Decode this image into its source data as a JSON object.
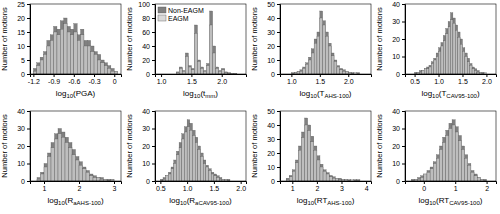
{
  "chart_data": [
    {
      "type": "histogram",
      "xlabel": [
        "log",
        "10",
        "(PGA)"
      ],
      "ylabel": "Number of motions",
      "bins": [
        -1.2,
        -1.15,
        -1.1,
        -1.05,
        -1,
        -0.95,
        -0.9,
        -0.85,
        -0.8,
        -0.75,
        -0.7,
        -0.65,
        -0.6,
        -0.55,
        -0.5,
        -0.45,
        -0.4,
        -0.35,
        -0.3,
        -0.25,
        -0.2,
        -0.15,
        -0.1,
        -0.05,
        0,
        0.05
      ],
      "series": [
        {
          "color": "#808080",
          "values": [
            2,
            4,
            6,
            8,
            12,
            14,
            17,
            16,
            19,
            20,
            17,
            16,
            18,
            14,
            16,
            12,
            12,
            10,
            8,
            7,
            5,
            4,
            3,
            2,
            1
          ]
        },
        {
          "color": "#d9d9d9",
          "values": [
            1,
            3,
            5,
            7,
            10,
            12,
            15,
            14,
            16,
            18,
            15,
            14,
            15,
            12,
            14,
            10,
            10,
            8,
            7,
            5,
            4,
            3,
            2,
            1,
            1
          ]
        }
      ],
      "xlim": [
        -1.25,
        0.1
      ],
      "xticks": [
        -1.2,
        -0.9,
        -0.6,
        -0.3,
        0
      ],
      "ylim": [
        0,
        25
      ],
      "yticks": [
        0,
        5,
        10,
        15,
        20,
        25
      ]
    },
    {
      "type": "histogram",
      "xlabel": [
        "log",
        "10",
        "(t",
        "mm",
        ")"
      ],
      "ylabel": "Number of motions",
      "bins": [
        1.2,
        1.25,
        1.3,
        1.35,
        1.4,
        1.45,
        1.5,
        1.55,
        1.6,
        1.65,
        1.7,
        1.75,
        1.8,
        1.85,
        1.9,
        1.95,
        2,
        2.05,
        2.1,
        2.15,
        2.2,
        2.25,
        2.3
      ],
      "series": [
        {
          "name": "Non-EAGM",
          "color": "#808080",
          "values": [
            0,
            3,
            10,
            5,
            30,
            12,
            8,
            70,
            20,
            10,
            5,
            15,
            90,
            40,
            10,
            5,
            8,
            3,
            2,
            1,
            1,
            0
          ]
        },
        {
          "name": "EAGM",
          "color": "#d9d9d9",
          "values": [
            0,
            2,
            8,
            4,
            25,
            10,
            6,
            58,
            18,
            8,
            4,
            12,
            70,
            30,
            8,
            4,
            6,
            2,
            1,
            1,
            0,
            0
          ]
        }
      ],
      "legend": "upper left",
      "xlim": [
        0.9,
        2.4
      ],
      "xticks": [
        {
          "value": 1,
          "label": "1.0"
        },
        1.5,
        {
          "value": 2,
          "label": "2.0"
        }
      ],
      "ylim": [
        0,
        100
      ],
      "yticks": [
        0,
        20,
        40,
        60,
        80,
        100
      ]
    },
    {
      "type": "histogram",
      "xlabel": [
        "log",
        "10",
        "(T",
        "AHS-100",
        ")"
      ],
      "ylabel": "Number of motions",
      "bins": [
        1,
        1.05,
        1.1,
        1.15,
        1.2,
        1.25,
        1.3,
        1.35,
        1.4,
        1.45,
        1.5,
        1.55,
        1.6,
        1.65,
        1.7,
        1.75,
        1.8,
        1.85,
        1.9,
        1.95,
        2,
        2.05,
        2.1,
        2.15,
        2.2
      ],
      "series": [
        {
          "color": "#808080",
          "values": [
            1,
            1,
            2,
            3,
            5,
            8,
            12,
            18,
            25,
            30,
            45,
            38,
            30,
            22,
            15,
            10,
            6,
            4,
            3,
            2,
            1,
            1,
            0,
            1
          ]
        },
        {
          "color": "#d9d9d9",
          "values": [
            0,
            1,
            2,
            2,
            4,
            7,
            10,
            15,
            22,
            27,
            40,
            35,
            27,
            20,
            13,
            9,
            5,
            3,
            2,
            2,
            1,
            0,
            1,
            0
          ]
        }
      ],
      "xlim": [
        0.8,
        2.4
      ],
      "xticks": [
        {
          "value": 1,
          "label": "1.0"
        },
        1.5,
        {
          "value": 2,
          "label": "2.0"
        }
      ],
      "ylim": [
        0,
        50
      ],
      "yticks": [
        0,
        10,
        20,
        30,
        40,
        50
      ]
    },
    {
      "type": "histogram",
      "xlabel": [
        "log",
        "10",
        "(T",
        "CAV95-100",
        ")"
      ],
      "ylabel": "Number of motions",
      "bins": [
        0.5,
        0.55,
        0.6,
        0.65,
        0.7,
        0.75,
        0.8,
        0.85,
        0.9,
        0.95,
        1,
        1.05,
        1.1,
        1.15,
        1.2,
        1.25,
        1.3,
        1.35,
        1.4,
        1.45,
        1.5,
        1.55,
        1.6,
        1.65,
        1.7,
        1.75,
        1.8,
        1.85,
        1.9,
        1.95,
        2
      ],
      "series": [
        {
          "color": "#808080",
          "values": [
            1,
            1,
            2,
            2,
            3,
            4,
            5,
            7,
            9,
            12,
            15,
            18,
            22,
            26,
            30,
            35,
            32,
            28,
            24,
            20,
            15,
            12,
            9,
            6,
            4,
            3,
            2,
            1,
            1,
            0
          ]
        },
        {
          "color": "#d9d9d9",
          "values": [
            0,
            1,
            1,
            2,
            3,
            3,
            4,
            6,
            8,
            10,
            13,
            16,
            19,
            23,
            27,
            31,
            29,
            25,
            21,
            17,
            13,
            10,
            7,
            5,
            3,
            2,
            1,
            1,
            0,
            1
          ]
        }
      ],
      "xlim": [
        0.3,
        2.2
      ],
      "xticks": [
        0.5,
        {
          "value": 1,
          "label": "1.0"
        },
        1.5,
        {
          "value": 2,
          "label": "2.0"
        }
      ],
      "ylim": [
        0,
        40
      ],
      "yticks": [
        0,
        10,
        20,
        30,
        40
      ]
    },
    {
      "type": "histogram",
      "xlabel": [
        "log",
        "10",
        "(R",
        "aAHS-100",
        ")"
      ],
      "ylabel": "Number of motions",
      "bins": [
        0.8,
        0.9,
        1,
        1.1,
        1.2,
        1.3,
        1.4,
        1.5,
        1.6,
        1.7,
        1.8,
        1.9,
        2,
        2.1,
        2.2,
        2.3,
        2.4,
        2.5,
        2.6,
        2.7,
        2.8,
        2.9,
        3
      ],
      "series": [
        {
          "color": "#808080",
          "values": [
            2,
            5,
            10,
            16,
            22,
            27,
            30,
            28,
            25,
            22,
            18,
            14,
            11,
            8,
            6,
            4,
            3,
            2,
            2,
            1,
            1,
            1
          ]
        },
        {
          "color": "#d9d9d9",
          "values": [
            1,
            4,
            8,
            14,
            19,
            24,
            27,
            25,
            22,
            19,
            15,
            12,
            9,
            7,
            5,
            3,
            2,
            2,
            1,
            1,
            0,
            1
          ]
        }
      ],
      "xlim": [
        0.6,
        3.2
      ],
      "xticks": [
        1,
        2,
        3
      ],
      "ylim": [
        0,
        40
      ],
      "yticks": [
        0,
        10,
        20,
        30,
        40
      ]
    },
    {
      "type": "histogram",
      "xlabel": [
        "log",
        "10",
        "(R",
        "aCAV95-100",
        ")"
      ],
      "ylabel": "Number of motions",
      "bins": [
        0.5,
        0.55,
        0.6,
        0.65,
        0.7,
        0.75,
        0.8,
        0.85,
        0.9,
        0.95,
        1,
        1.05,
        1.1,
        1.15,
        1.2,
        1.25,
        1.3,
        1.35,
        1.4,
        1.45,
        1.5,
        1.55,
        1.6,
        1.65,
        1.7,
        1.75,
        1.8
      ],
      "series": [
        {
          "color": "#808080",
          "values": [
            1,
            2,
            3,
            5,
            8,
            12,
            17,
            22,
            27,
            31,
            35,
            33,
            29,
            25,
            20,
            16,
            12,
            9,
            7,
            5,
            4,
            3,
            2,
            1,
            1,
            1
          ]
        },
        {
          "color": "#d9d9d9",
          "values": [
            0,
            1,
            3,
            4,
            7,
            10,
            15,
            19,
            24,
            28,
            31,
            29,
            26,
            22,
            18,
            14,
            10,
            8,
            6,
            4,
            3,
            2,
            1,
            1,
            1,
            0
          ]
        }
      ],
      "xlim": [
        0.4,
        2.1
      ],
      "xticks": [
        0.5,
        {
          "value": 1,
          "label": "1.0"
        },
        1.5,
        {
          "value": 2,
          "label": "2.0"
        }
      ],
      "ylim": [
        0,
        40
      ],
      "yticks": [
        0,
        10,
        20,
        30,
        40
      ]
    },
    {
      "type": "histogram",
      "xlabel": [
        "log",
        "10",
        "(RT",
        "AHS-100",
        ")"
      ],
      "ylabel": "Number of motions",
      "bins": [
        0.75,
        0.875,
        1,
        1.125,
        1.25,
        1.375,
        1.5,
        1.625,
        1.75,
        1.875,
        2,
        2.125,
        2.25,
        2.375,
        2.5,
        2.625,
        2.75,
        2.875,
        3,
        3.125,
        3.25,
        3.375,
        3.5,
        3.625,
        3.75
      ],
      "series": [
        {
          "color": "#808080",
          "values": [
            2,
            4,
            8,
            15,
            25,
            35,
            45,
            40,
            32,
            25,
            18,
            12,
            8,
            6,
            4,
            3,
            2,
            2,
            1,
            1,
            1,
            0,
            1,
            1
          ]
        },
        {
          "color": "#d9d9d9",
          "values": [
            1,
            3,
            7,
            13,
            22,
            31,
            40,
            36,
            28,
            22,
            15,
            10,
            7,
            5,
            3,
            2,
            2,
            1,
            1,
            1,
            0,
            1,
            0,
            0
          ]
        }
      ],
      "xlim": [
        0.5,
        4.2
      ],
      "xticks": [
        1,
        2,
        3,
        4
      ],
      "ylim": [
        0,
        50
      ],
      "yticks": [
        0,
        10,
        20,
        30,
        40,
        50
      ]
    },
    {
      "type": "histogram",
      "xlabel": [
        "log",
        "10",
        "(RT",
        "CAV95-100",
        ")"
      ],
      "ylabel": "Number of motions",
      "bins": [
        -0.4,
        -0.3,
        -0.2,
        -0.1,
        0,
        0.1,
        0.2,
        0.3,
        0.4,
        0.5,
        0.6,
        0.7,
        0.8,
        0.9,
        1,
        1.1,
        1.2,
        1.3,
        1.4,
        1.5,
        1.6,
        1.7,
        1.8,
        1.9,
        2
      ],
      "series": [
        {
          "color": "#808080",
          "values": [
            1,
            1,
            2,
            3,
            4,
            6,
            8,
            11,
            15,
            20,
            25,
            29,
            33,
            35,
            31,
            26,
            20,
            15,
            10,
            6,
            4,
            2,
            1,
            1
          ]
        },
        {
          "color": "#d9d9d9",
          "values": [
            0,
            1,
            1,
            2,
            4,
            5,
            7,
            10,
            13,
            18,
            22,
            26,
            30,
            32,
            28,
            23,
            18,
            13,
            9,
            5,
            3,
            2,
            1,
            0
          ]
        }
      ],
      "xlim": [
        -0.6,
        2.3
      ],
      "xticks": [
        0,
        1,
        2
      ],
      "ylim": [
        0,
        40
      ],
      "yticks": [
        0,
        10,
        20,
        30,
        40
      ]
    }
  ]
}
